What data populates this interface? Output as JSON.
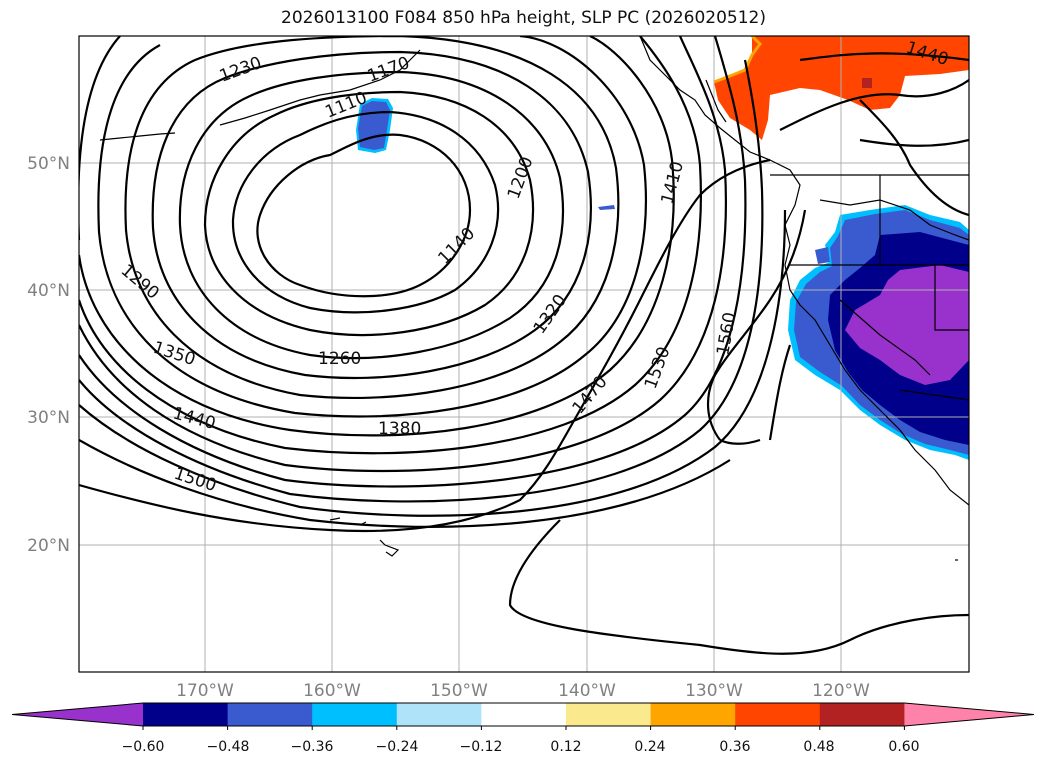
{
  "title": "2026013100 F084 850 hPa height, SLP PC (2026020512)",
  "map": {
    "lat_ticks": [
      "50°N",
      "40°N",
      "30°N",
      "20°N"
    ],
    "lon_ticks": [
      "170°W",
      "160°W",
      "150°W",
      "140°W",
      "130°W",
      "120°W"
    ],
    "contour_labels": [
      "1230",
      "1170",
      "1110",
      "1200",
      "1140",
      "1290",
      "1350",
      "1260",
      "1320",
      "1410",
      "1440",
      "1380",
      "1470",
      "1530",
      "1560",
      "1500",
      "1440"
    ]
  },
  "colorbar": {
    "tick_labels": [
      "−0.60",
      "−0.48",
      "−0.36",
      "−0.24",
      "−0.12",
      "0.12",
      "0.24",
      "0.36",
      "0.48",
      "0.60"
    ],
    "colors": [
      "#9932cc",
      "#00008b",
      "#3a5bd0",
      "#00bfff",
      "#aee3f9",
      "#ffffff",
      "#fbe98d",
      "#ffa500",
      "#ff4500",
      "#b22222",
      "#ff82ab"
    ]
  },
  "colors": {
    "negative_strong": "#00008b",
    "negative_mid": "#3a5bd0",
    "negative_purple": "#9932cc",
    "positive_orange": "#ff4500"
  }
}
